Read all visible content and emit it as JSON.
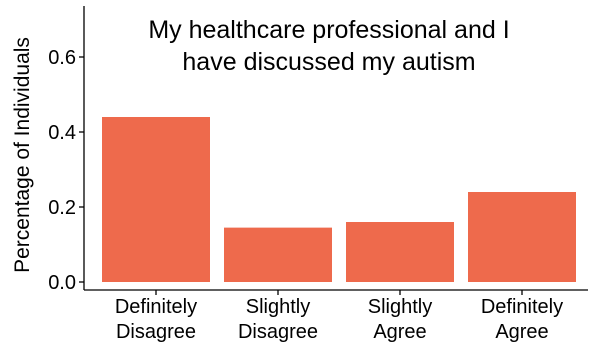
{
  "chart_data": {
    "type": "bar",
    "title_lines": [
      "My healthcare professional and I",
      "have discussed my autism"
    ],
    "ylabel": "Percentage of Individuals",
    "xlabel": "",
    "categories": [
      [
        "Definitely",
        "Disagree"
      ],
      [
        "Slightly",
        "Disagree"
      ],
      [
        "Slightly",
        "Agree"
      ],
      [
        "Definitely",
        "Agree"
      ]
    ],
    "values": [
      0.44,
      0.145,
      0.16,
      0.24
    ],
    "ylim": [
      0,
      0.7
    ],
    "yticks": [
      0.0,
      0.2,
      0.4,
      0.6
    ],
    "ytick_labels": [
      "0.0",
      "0.2",
      "0.4",
      "0.6"
    ],
    "bar_color": "#ee6a4c",
    "grid": false,
    "legend": "none"
  }
}
